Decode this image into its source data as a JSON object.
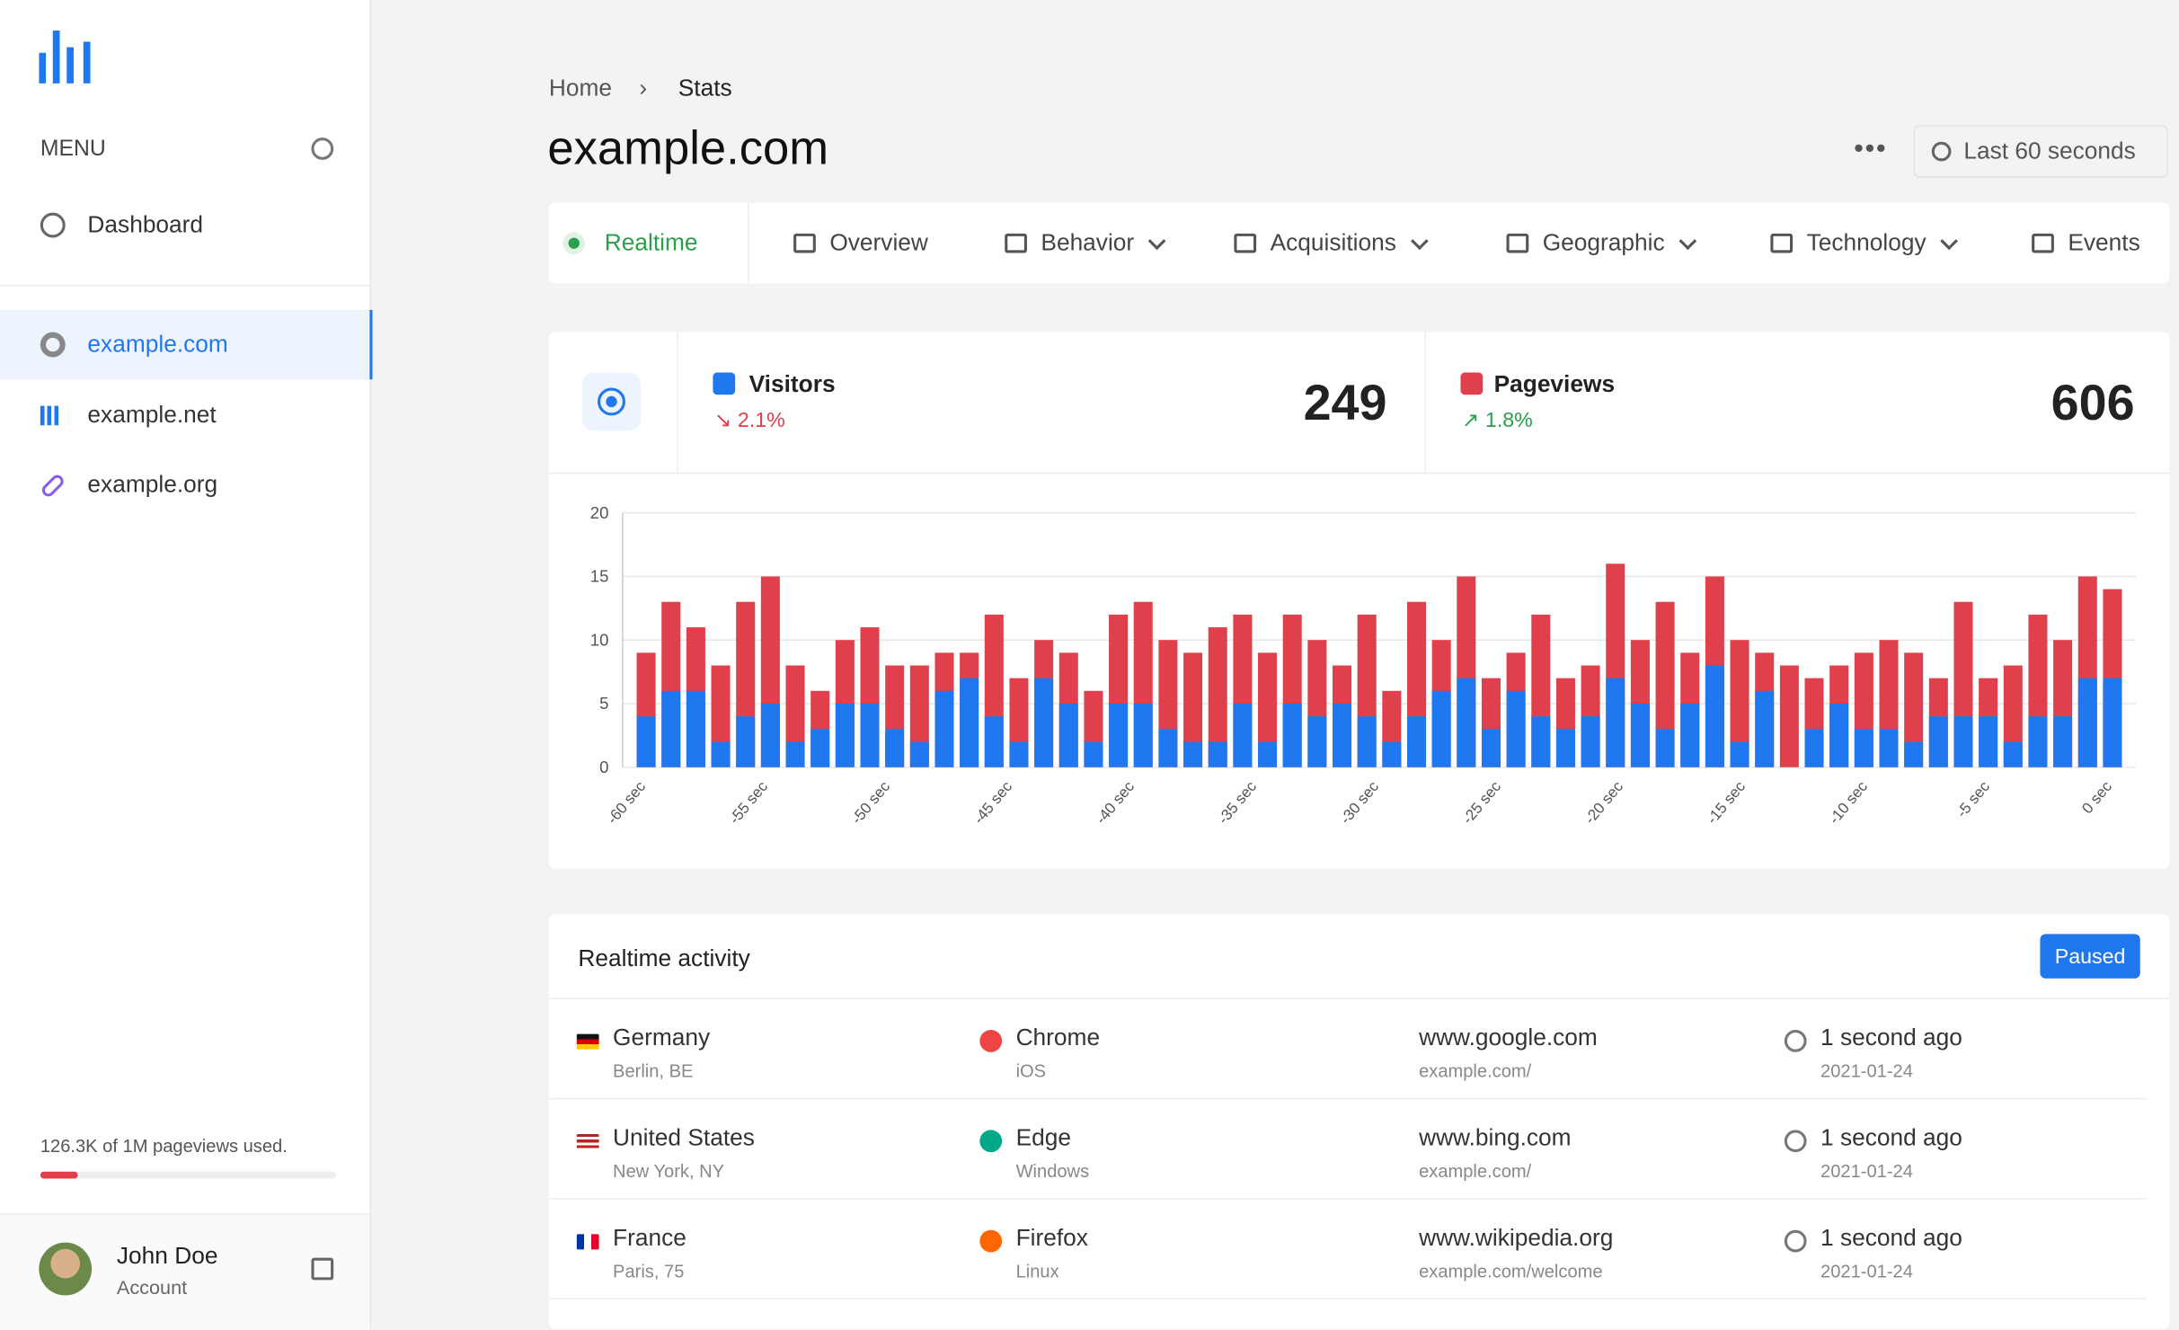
{
  "sidebar": {
    "menu_label": "MENU",
    "nav": [
      "Dashboard"
    ],
    "sites": [
      "example.com",
      "example.net",
      "example.org"
    ],
    "usage": "126.3K of 1M pageviews used.",
    "user": {
      "name": "John Doe",
      "role": "Account"
    }
  },
  "header": {
    "breadcrumb": [
      "Home",
      "Stats"
    ],
    "title": "example.com",
    "range": "Last 60 seconds"
  },
  "tabs": [
    "Realtime",
    "Overview",
    "Behavior",
    "Acquisitions",
    "Geographic",
    "Technology",
    "Events"
  ],
  "stats": [
    {
      "label": "Visitors",
      "change": "2.1%",
      "value": 249
    },
    {
      "label": "Pageviews",
      "change": "1.8%",
      "value": 606
    }
  ],
  "chart_data": {
    "type": "bar",
    "x_labels": [
      "-60 sec",
      "-55 sec",
      "-50 sec",
      "-45 sec",
      "-40 sec",
      "-35 sec",
      "-30 sec",
      "-25 sec",
      "-20 sec",
      "-15 sec",
      "-10 sec",
      "-5 sec",
      "0 sec"
    ],
    "series": [
      {
        "name": "Pageviews",
        "color": "#e0404b",
        "values": [
          9,
          13,
          11,
          8,
          13,
          15,
          8,
          6,
          10,
          11,
          8,
          8,
          9,
          9,
          12,
          7,
          10,
          9,
          6,
          12,
          13,
          10,
          9,
          11,
          12,
          9,
          12,
          10,
          8,
          12,
          6,
          13,
          10,
          15,
          7,
          9,
          12,
          7,
          8,
          16,
          10,
          13,
          9,
          15,
          10,
          9,
          8,
          7,
          8,
          9,
          10,
          9,
          7,
          13,
          7,
          8,
          12,
          10,
          15,
          14
        ]
      },
      {
        "name": "Visitors",
        "color": "#1f78f0",
        "values": [
          4,
          6,
          6,
          2,
          4,
          5,
          2,
          3,
          5,
          5,
          3,
          2,
          6,
          7,
          4,
          2,
          7,
          5,
          2,
          5,
          5,
          3,
          2,
          2,
          5,
          2,
          5,
          4,
          5,
          4,
          2,
          4,
          6,
          7,
          3,
          6,
          4,
          3,
          4,
          7,
          5,
          3,
          5,
          8,
          2,
          6,
          0,
          3,
          5,
          3,
          3,
          2,
          4,
          4,
          4,
          2,
          4,
          4,
          7,
          7
        ]
      }
    ],
    "ylim": [
      0,
      20
    ],
    "yticks": [
      0,
      5,
      10,
      15,
      20
    ],
    "grid": true
  },
  "activity": {
    "title": "Realtime activity",
    "status": "Paused",
    "rows": [
      {
        "country": "Germany",
        "city": "Berlin, BE",
        "browser": "Chrome",
        "os": "iOS",
        "referrer": "www.google.com",
        "path": "example.com/",
        "time": "1 second ago",
        "date": "2021-01-24"
      },
      {
        "country": "United States",
        "city": "New York, NY",
        "browser": "Edge",
        "os": "Windows",
        "referrer": "www.bing.com",
        "path": "example.com/",
        "time": "1 second ago",
        "date": "2021-01-24"
      },
      {
        "country": "France",
        "city": "Paris, 75",
        "browser": "Firefox",
        "os": "Linux",
        "referrer": "www.wikipedia.org",
        "path": "example.com/welcome",
        "time": "1 second ago",
        "date": "2021-01-24"
      }
    ]
  }
}
